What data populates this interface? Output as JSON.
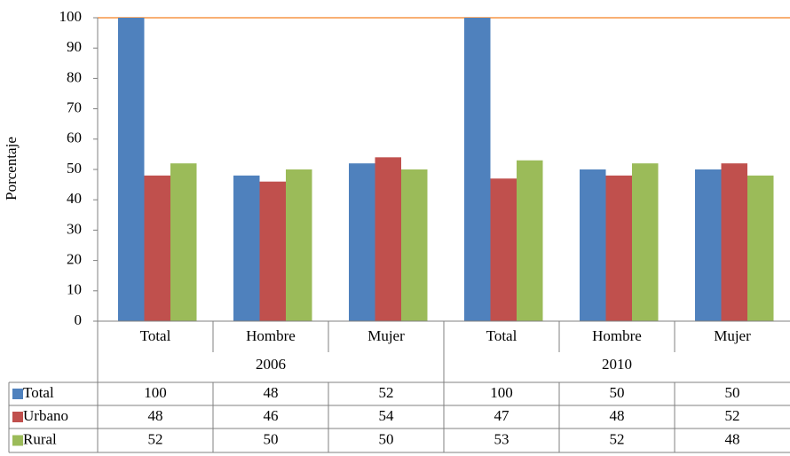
{
  "chart_data": {
    "type": "bar",
    "y_label": "Porcentaje",
    "categories": [
      "Total",
      "Hombre",
      "Mujer",
      "Total",
      "Hombre",
      "Mujer"
    ],
    "groups": [
      "2006",
      "2010"
    ],
    "series": [
      {
        "name": "Total",
        "color": "#4f81bd",
        "values": [
          100,
          48,
          52,
          100,
          50,
          50
        ]
      },
      {
        "name": "Urbano",
        "color": "#c0504d",
        "values": [
          48,
          46,
          54,
          47,
          48,
          52
        ]
      },
      {
        "name": "Rural",
        "color": "#9bbb59",
        "values": [
          52,
          50,
          50,
          53,
          52,
          48
        ]
      }
    ],
    "ylim": [
      0,
      100
    ],
    "yticks": [
      0,
      10,
      20,
      30,
      40,
      50,
      60,
      70,
      80,
      90,
      100
    ]
  }
}
